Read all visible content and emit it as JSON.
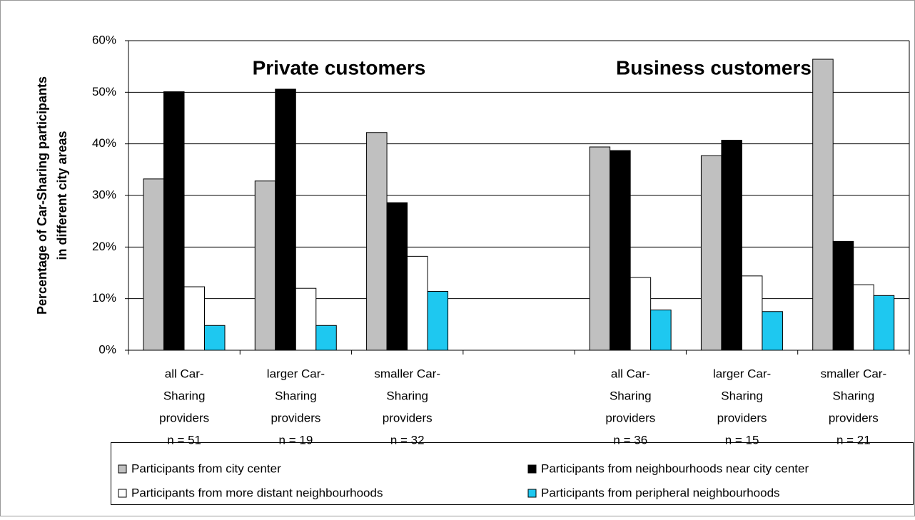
{
  "chart_data": {
    "type": "bar",
    "ylabel": [
      "Percentage of Car-Sharing participants",
      "in different city areas"
    ],
    "annotations": [
      "Private customers",
      "Business customers"
    ],
    "categories": [
      [
        "all Car-",
        "Sharing",
        "providers",
        "n = 51"
      ],
      [
        "larger Car-",
        "Sharing",
        "providers",
        "n = 19"
      ],
      [
        "smaller Car-",
        "Sharing",
        "providers",
        "n = 32"
      ],
      null,
      [
        "all Car-",
        "Sharing",
        "providers",
        "n = 36"
      ],
      [
        "larger Car-",
        "Sharing",
        "providers",
        "n = 15"
      ],
      [
        "smaller Car-",
        "Sharing",
        "providers",
        "n = 21"
      ]
    ],
    "series": [
      {
        "name": "Participants from city center",
        "color": "#c0c0c0",
        "values": [
          33.2,
          32.8,
          42.2,
          null,
          39.4,
          37.7,
          56.4
        ]
      },
      {
        "name": "Participants from neighbourhoods near city center",
        "color": "#000000",
        "values": [
          50.1,
          50.6,
          28.6,
          null,
          38.7,
          40.7,
          21.1
        ]
      },
      {
        "name": "Participants from more distant neighbourhoods",
        "color": "#ffffff",
        "values": [
          12.3,
          12.0,
          18.2,
          null,
          14.1,
          14.4,
          12.7
        ]
      },
      {
        "name": "Participants from peripheral neighbourhoods",
        "color": "#1ec8f0",
        "values": [
          4.8,
          4.8,
          11.4,
          null,
          7.8,
          7.5,
          10.6
        ]
      }
    ],
    "ylim": [
      0,
      60
    ],
    "yticks": [
      {
        "value": 0,
        "label": "0%"
      },
      {
        "value": 10,
        "label": "10%"
      },
      {
        "value": 20,
        "label": "20%"
      },
      {
        "value": 30,
        "label": "30%"
      },
      {
        "value": 40,
        "label": "40%"
      },
      {
        "value": 50,
        "label": "50%"
      },
      {
        "value": 60,
        "label": "60%"
      }
    ],
    "grid": true
  }
}
